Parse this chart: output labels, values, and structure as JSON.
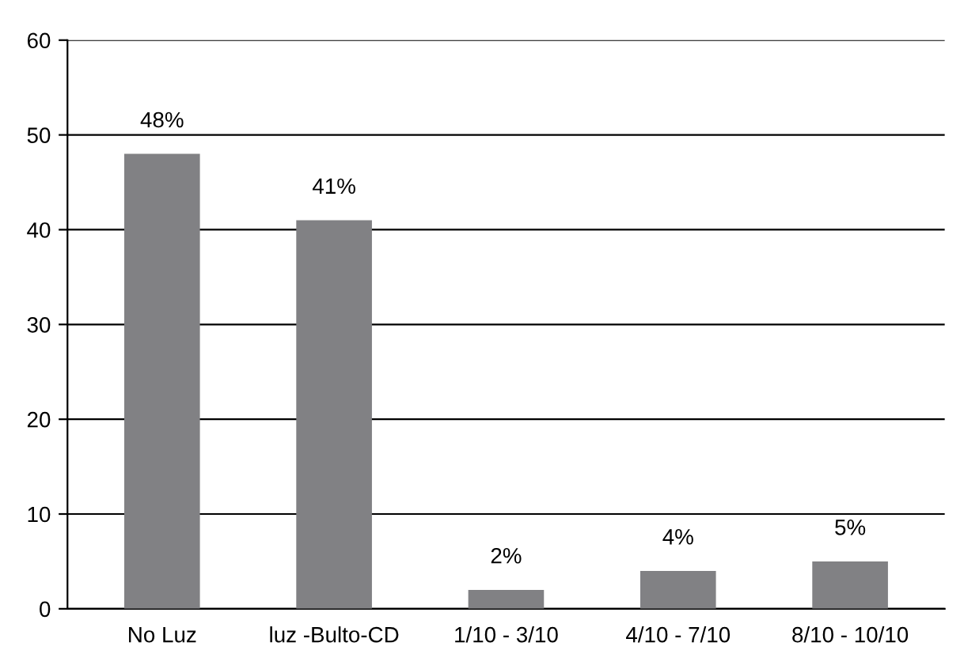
{
  "chart_data": {
    "type": "bar",
    "categories": [
      "No Luz",
      "luz -Bulto-CD",
      "1/10 - 3/10",
      "4/10 - 7/10",
      "8/10 - 10/10"
    ],
    "values": [
      48,
      41,
      2,
      4,
      5
    ],
    "value_labels": [
      "48%",
      "41%",
      "2%",
      "4%",
      "5%"
    ],
    "color": "#818184",
    "ylim": [
      0,
      60
    ],
    "yticks": [
      0,
      10,
      20,
      30,
      40,
      50,
      60
    ],
    "grid": "y",
    "legend": false
  }
}
